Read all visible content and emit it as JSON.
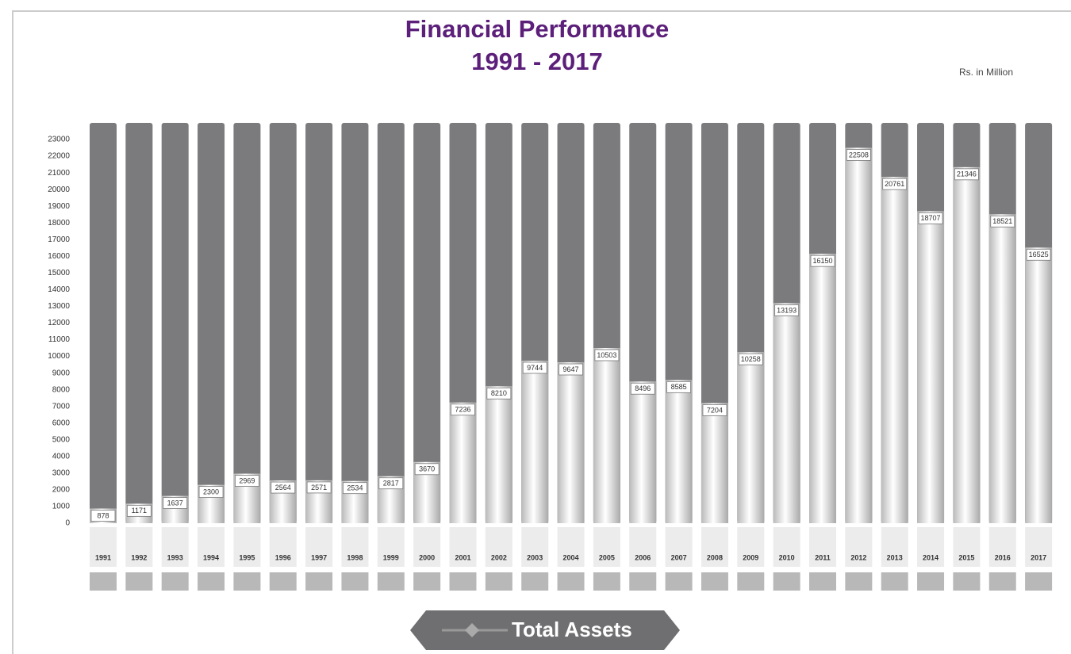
{
  "chart_data": {
    "type": "bar",
    "title": "Financial Performance",
    "subtitle": "1991 - 2017",
    "unit_label": "Rs. in Million",
    "categories": [
      "1991",
      "1992",
      "1993",
      "1994",
      "1995",
      "1996",
      "1997",
      "1998",
      "1999",
      "2000",
      "2001",
      "2002",
      "2003",
      "2004",
      "2005",
      "2006",
      "2007",
      "2008",
      "2009",
      "2010",
      "2011",
      "2012",
      "2013",
      "2014",
      "2015",
      "2016",
      "2017"
    ],
    "series": [
      {
        "name": "Total Assets",
        "color": "#e6e6e6",
        "values": [
          878,
          1171,
          1637,
          2300,
          2969,
          2564,
          2571,
          2534,
          2817,
          3670,
          7236,
          8210,
          9744,
          9647,
          10503,
          8496,
          8585,
          7204,
          10258,
          13193,
          16150,
          22508,
          20761,
          18707,
          21346,
          18521,
          16525
        ]
      }
    ],
    "background_color": "#7b7b7d",
    "ylim": [
      0,
      24000
    ],
    "yticks": [
      0,
      1000,
      2000,
      3000,
      4000,
      5000,
      6000,
      7000,
      8000,
      9000,
      10000,
      11000,
      12000,
      13000,
      14000,
      15000,
      16000,
      17000,
      18000,
      19000,
      20000,
      21000,
      22000,
      23000
    ],
    "legend": "bottom"
  }
}
